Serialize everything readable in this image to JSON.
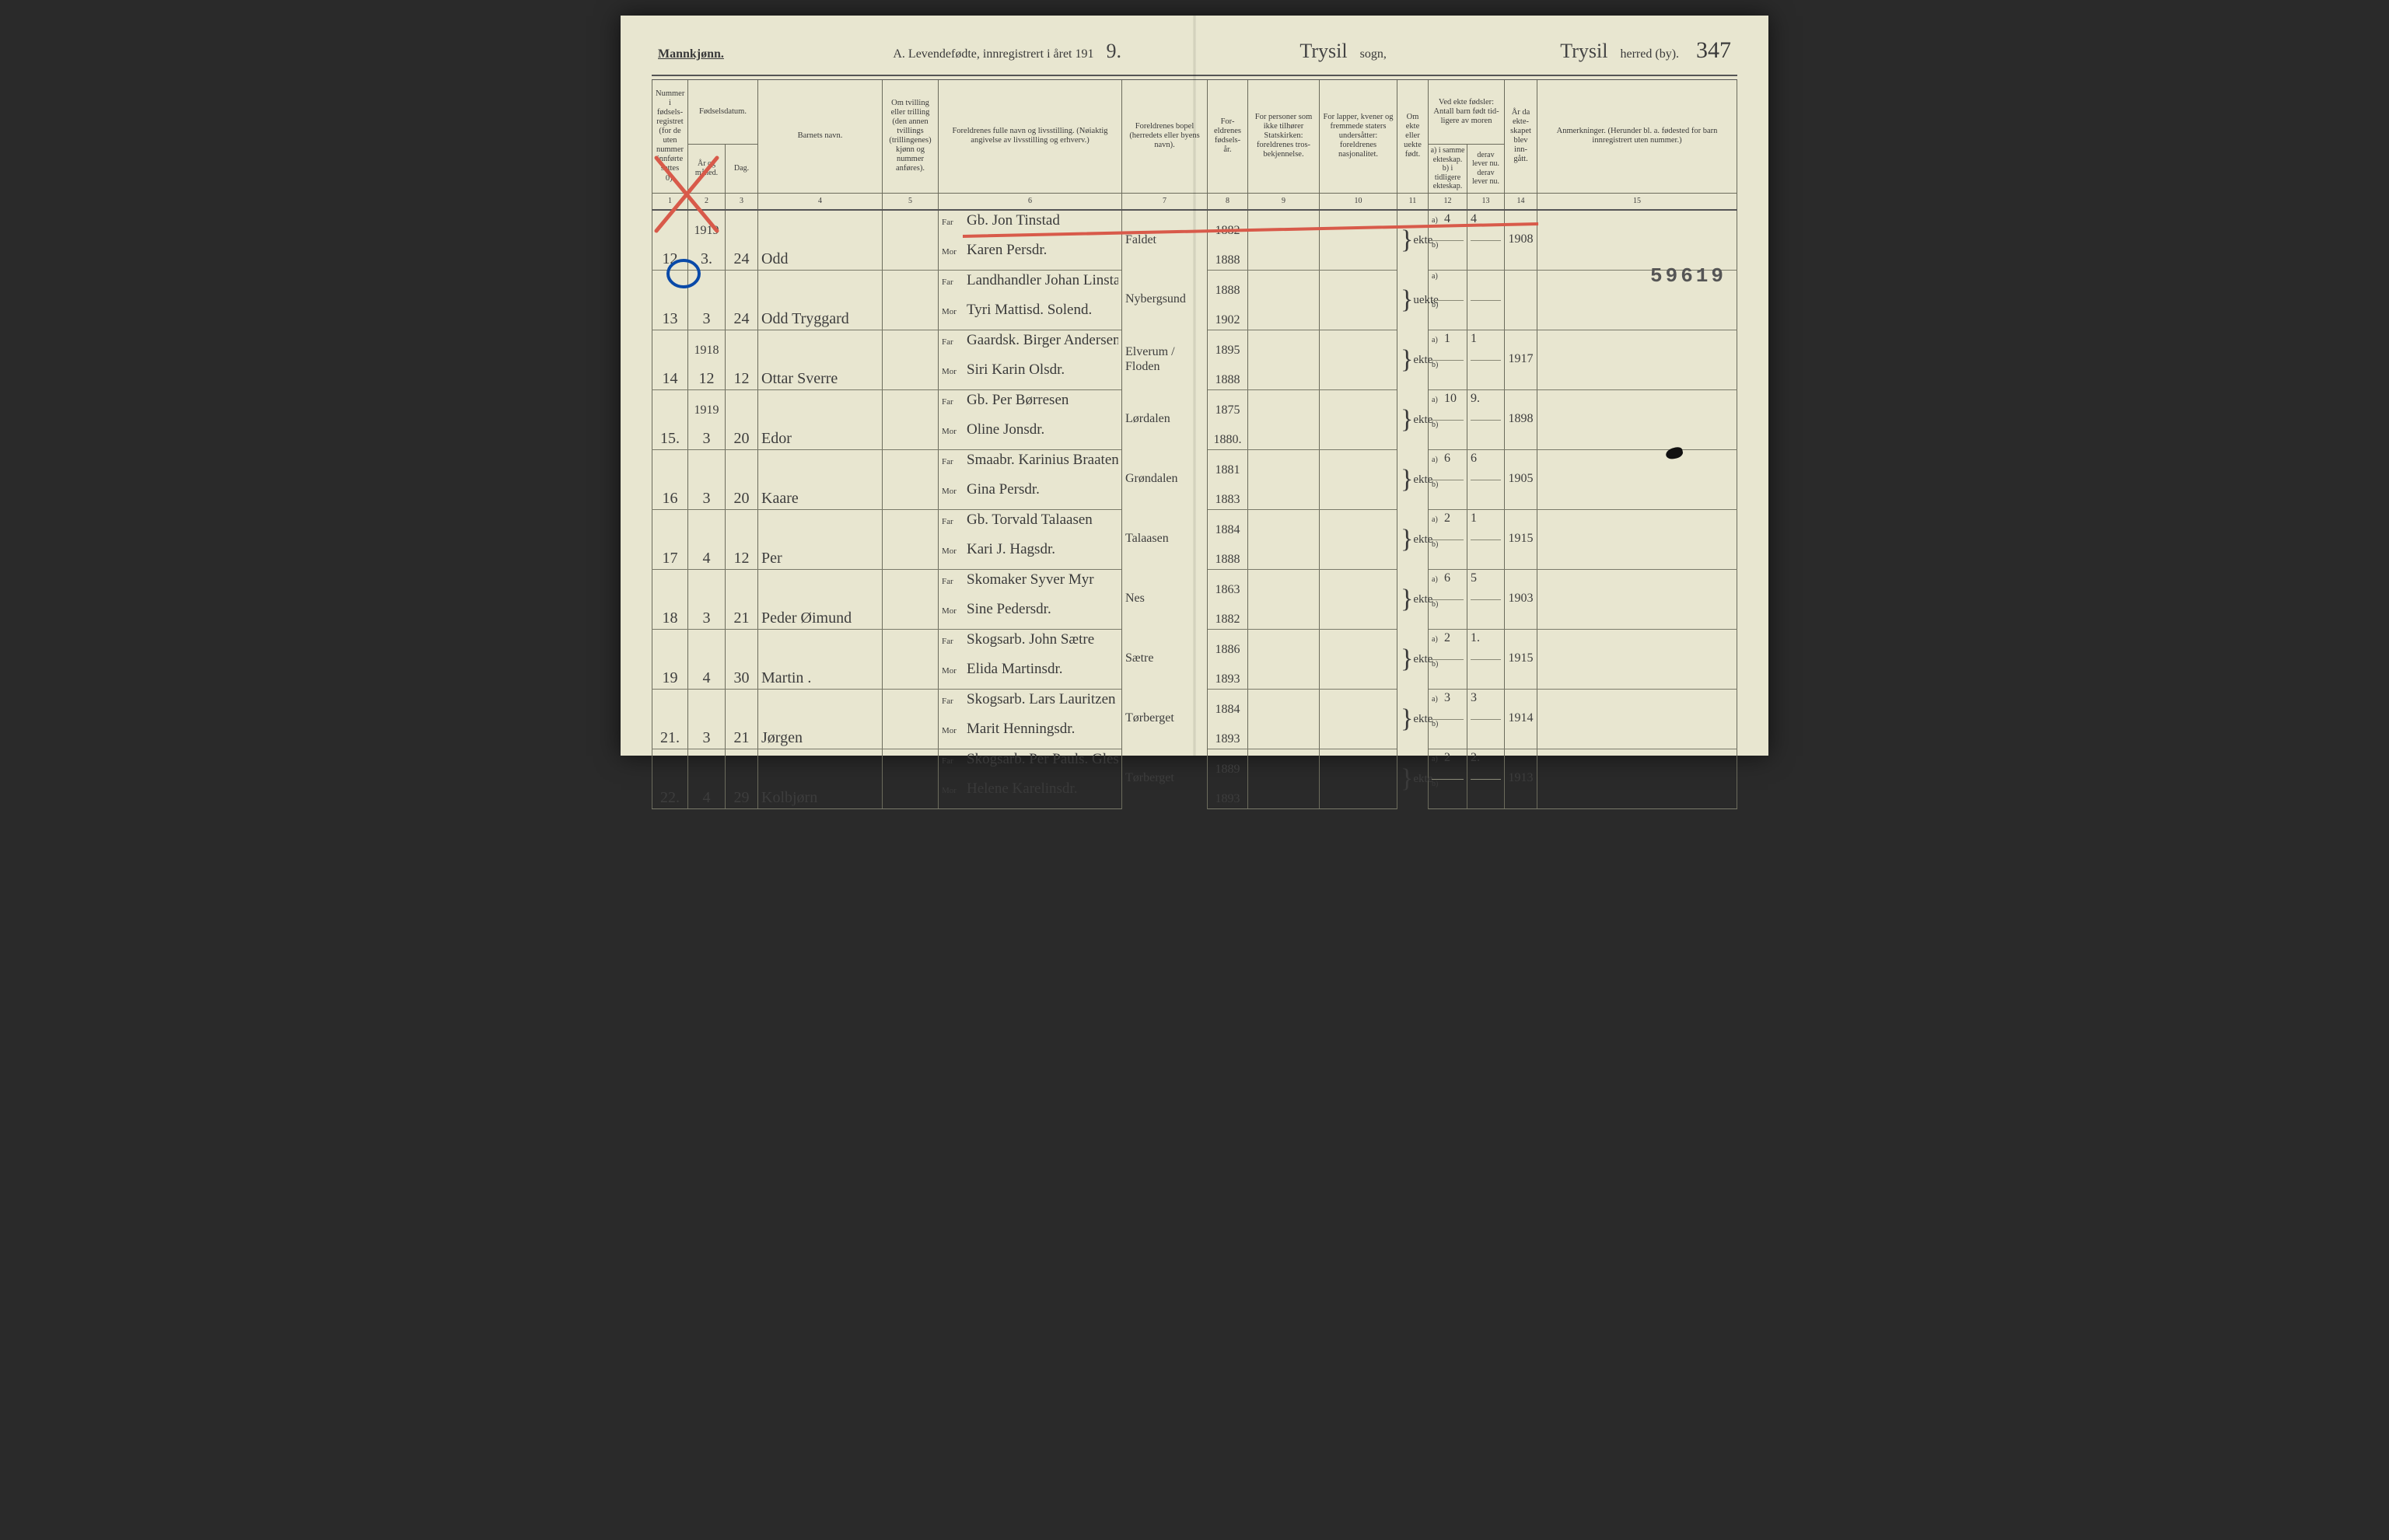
{
  "title": {
    "gender": "Mannkjønn.",
    "form_label": "A.  Levendefødte, innregistrert i året 191",
    "year_digit": "9.",
    "sogn_hand": "Trysil",
    "sogn_label": "sogn,",
    "herred_hand": "Trysil",
    "herred_label": "herred (by).",
    "page_no": "347"
  },
  "headers": {
    "c1": "Nummer i fødsels-registret (for de uten nummer innførte settes 0).",
    "c2_3": "Fødselsdatum.",
    "c2": "År og måned.",
    "c3": "Dag.",
    "c4": "Barnets navn.",
    "c5": "Om tvilling eller trilling (den annen tvillings (trillingenes) kjønn og nummer anføres).",
    "c6": "Foreldrenes fulle navn og livsstilling. (Nøiaktig angivelse av livsstilling og erhverv.)",
    "c7": "Foreldrenes bopel (herredets eller byens navn).",
    "c8": "For-eldrenes fødsels-år.",
    "c9": "For personer som ikke tilhører Statskirken: foreldrenes tros-bekjennelse.",
    "c10": "For lapper, kvener og fremmede staters undersåtter: foreldrenes nasjonalitet.",
    "c11": "Om ekte eller uekte født.",
    "c12_13": "Ved ekte fødsler: Antall barn født tid-ligere av moren",
    "c12a": "a) i samme ekteskap.",
    "c12b": "b) i tidligere ekteskap.",
    "c13a": "derav lever nu.",
    "c13b": "derav lever nu.",
    "c14": "År da ekte-skapet blev inn-gått.",
    "c15": "Anmerkninger. (Herunder bl. a. fødested for barn innregistrert uten nummer.)"
  },
  "colnums": [
    "1",
    "2",
    "3",
    "4",
    "5",
    "6",
    "7",
    "8",
    "9",
    "10",
    "11",
    "12",
    "13",
    "14",
    "15"
  ],
  "stamp": "59619",
  "rows": [
    {
      "num": "12",
      "year": "1919",
      "mon": "3.",
      "day": "24",
      "name": "Odd",
      "far": "Gb. Jon Tinstad",
      "mor": "Karen Persdr.",
      "place": "Faldet",
      "far_yr": "1882",
      "mor_yr": "1888",
      "ekte": "ekte",
      "a12": "4",
      "a13": "4",
      "yr14": "1908"
    },
    {
      "num": "13",
      "year": "",
      "mon": "3",
      "day": "24",
      "name": "Odd Tryggard",
      "far": "Landhandler Johan Linstad",
      "mor": "Tyri Mattisd. Solend.",
      "place": "Nybergsund",
      "far_yr": "1888",
      "mor_yr": "1902",
      "ekte": "uekte",
      "a12": "",
      "a13": "",
      "yr14": ""
    },
    {
      "num": "14",
      "year": "1918",
      "mon": "12",
      "day": "12",
      "name": "Ottar Sverre",
      "far": "Gaardsk. Birger Andersen",
      "mor": "Siri Karin Olsdr.",
      "place": "Elverum / Floden",
      "far_yr": "1895",
      "mor_yr": "1888",
      "ekte": "ekte",
      "a12": "1",
      "a13": "1",
      "yr14": "1917"
    },
    {
      "num": "15.",
      "year": "1919",
      "mon": "3",
      "day": "20",
      "name": "Edor",
      "far": "Gb. Per Børresen",
      "mor": "Oline Jonsdr.",
      "place": "Lørdalen",
      "far_yr": "1875",
      "mor_yr": "1880.",
      "ekte": "ekte",
      "a12": "10",
      "a13": "9.",
      "yr14": "1898"
    },
    {
      "num": "16",
      "year": "",
      "mon": "3",
      "day": "20",
      "name": "Kaare",
      "far": "Smaabr. Karinius Braaten",
      "mor": "Gina Persdr.",
      "place": "Grøndalen",
      "far_yr": "1881",
      "mor_yr": "1883",
      "ekte": "ekte",
      "a12": "6",
      "a13": "6",
      "yr14": "1905"
    },
    {
      "num": "17",
      "year": "",
      "mon": "4",
      "day": "12",
      "name": "Per",
      "far": "Gb. Torvald Talaasen",
      "mor": "Kari J. Hagsdr.",
      "place": "Talaasen",
      "far_yr": "1884",
      "mor_yr": "1888",
      "ekte": "ekte",
      "a12": "2",
      "a13": "1",
      "yr14": "1915"
    },
    {
      "num": "18",
      "year": "",
      "mon": "3",
      "day": "21",
      "name": "Peder Øimund",
      "far": "Skomaker Syver Myr",
      "mor": "Sine Pedersdr.",
      "place": "Nes",
      "far_yr": "1863",
      "mor_yr": "1882",
      "ekte": "ekte",
      "a12": "6",
      "a13": "5",
      "yr14": "1903"
    },
    {
      "num": "19",
      "year": "",
      "mon": "4",
      "day": "30",
      "name": "Martin .",
      "far": "Skogsarb. John Sætre",
      "mor": "Elida Martinsdr.",
      "place": "Sætre",
      "far_yr": "1886",
      "mor_yr": "1893",
      "ekte": "ekte",
      "a12": "2",
      "a13": "1.",
      "yr14": "1915"
    },
    {
      "num": "21.",
      "year": "",
      "mon": "3",
      "day": "21",
      "name": "Jørgen",
      "far": "Skogsarb. Lars Lauritzen",
      "mor": "Marit Henningsdr.",
      "place": "Tørberget",
      "far_yr": "1884",
      "mor_yr": "1893",
      "ekte": "ekte",
      "a12": "3",
      "a13": "3",
      "yr14": "1914"
    },
    {
      "num": "22.",
      "year": "",
      "mon": "4",
      "day": "29",
      "name": "Kolbjørn",
      "far": "Skogsarb. Per Pauls. Glesåmot",
      "mor": "Helene Karelinsdr.",
      "place": "Tørberget",
      "far_yr": "1889",
      "mor_yr": "1893",
      "ekte": "ekte",
      "a12": "2",
      "a13": "2.",
      "yr14": "1913"
    }
  ]
}
